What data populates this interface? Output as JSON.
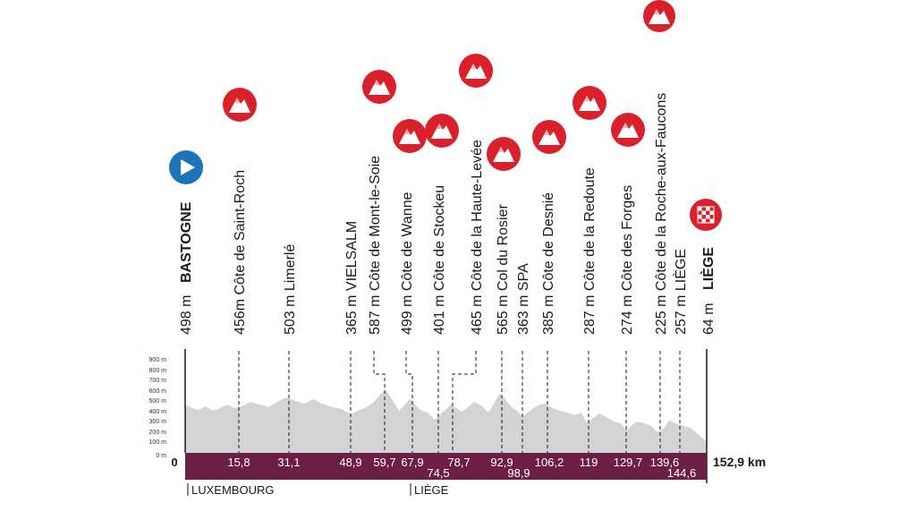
{
  "start": {
    "altitude": "498 m",
    "name": "BASTOGNE",
    "km": "0"
  },
  "finish": {
    "altitude": "64 m",
    "name": "LIÈGE",
    "total": "152,9 km"
  },
  "points": [
    {
      "label": "456m  Côte de Saint-Roch",
      "km": "15,8",
      "type": "climb"
    },
    {
      "label": "503 m Limerlé",
      "km": "31,1",
      "type": "town"
    },
    {
      "label": "365 m VIELSALM",
      "km": "48,9",
      "type": "town"
    },
    {
      "label": "587 m Côte de Mont-le-Soie",
      "km": "59,7",
      "type": "climb"
    },
    {
      "label": "499 m Côte de Wanne",
      "km": "67,9",
      "type": "climb"
    },
    {
      "label": "401 m Côte de Stockeu",
      "km": "74,5",
      "type": "climb"
    },
    {
      "label": "465 m Côte de la Haute-Levée",
      "km": "78,7",
      "type": "climb"
    },
    {
      "label": "565 m Col du Rosier",
      "km": "92,9",
      "type": "climb"
    },
    {
      "label": "363 m SPA",
      "km": "98,9",
      "type": "town"
    },
    {
      "label": "385 m Côte de Desnié",
      "km": "106,2",
      "type": "climb"
    },
    {
      "label": "287 m Côte de la Redoute",
      "km": "119",
      "type": "climb"
    },
    {
      "label": "274 m Côte des Forges",
      "km": "129,7",
      "type": "climb"
    },
    {
      "label": "225 m Côte de la Roche-aux-Faucons",
      "km": "139,6",
      "type": "climb"
    },
    {
      "label": "257 m LIÈGE",
      "km": "144,6",
      "type": "town"
    }
  ],
  "y_axis": [
    "900 m",
    "800 m",
    "700 m",
    "600 m",
    "500 m",
    "400 m",
    "300 m",
    "200 m",
    "100 m",
    "0 m"
  ],
  "regions": [
    "LUXEMBOURG",
    "LIÈGE"
  ],
  "colors": {
    "band": "#6d1e45",
    "climb": "#d9202b",
    "start": "#1e73b9",
    "profile": "#d3d3d3",
    "finish": "#d9202b"
  }
}
